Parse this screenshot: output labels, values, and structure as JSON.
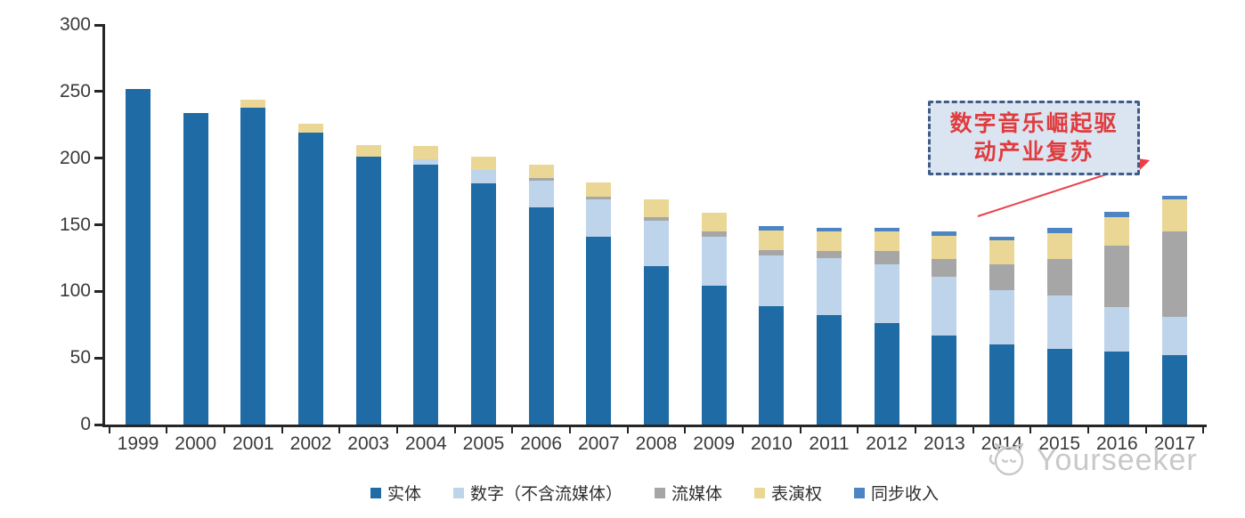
{
  "chart_data": {
    "type": "bar",
    "stacked": true,
    "title": "",
    "xlabel": "",
    "ylabel": "",
    "categories": [
      "1999",
      "2000",
      "2001",
      "2002",
      "2003",
      "2004",
      "2005",
      "2006",
      "2007",
      "2008",
      "2009",
      "2010",
      "2011",
      "2012",
      "2013",
      "2014",
      "2015",
      "2016",
      "2017"
    ],
    "series": [
      {
        "name": "实体",
        "key": "physical",
        "color": "#1F6BA5",
        "values": [
          252,
          234,
          238,
          219,
          201,
          195,
          181,
          163,
          141,
          119,
          104,
          89,
          82,
          76,
          67,
          60,
          57,
          55,
          52
        ]
      },
      {
        "name": "数字（不含流媒体）",
        "key": "digital-excl-streaming",
        "color": "#BDD4EB",
        "values": [
          0,
          0,
          0,
          0,
          0,
          4,
          10,
          20,
          28,
          34,
          37,
          38,
          43,
          44,
          44,
          41,
          40,
          33,
          29
        ]
      },
      {
        "name": "流媒体",
        "key": "streaming",
        "color": "#A6A6A6",
        "values": [
          0,
          0,
          0,
          0,
          0,
          0,
          0,
          2,
          2,
          3,
          4,
          4,
          5,
          10,
          13,
          19,
          27,
          46,
          64
        ]
      },
      {
        "name": "表演权",
        "key": "performance-rights",
        "color": "#EBD795",
        "values": [
          0,
          0,
          6,
          7,
          9,
          10,
          10,
          10,
          11,
          13,
          14,
          15,
          15,
          15,
          18,
          18,
          20,
          22,
          24
        ]
      },
      {
        "name": "同步收入",
        "key": "sync-revenue",
        "color": "#4D84C4",
        "values": [
          0,
          0,
          0,
          0,
          0,
          0,
          0,
          0,
          0,
          0,
          0,
          3,
          3,
          3,
          3,
          3,
          4,
          4,
          3
        ]
      }
    ],
    "totals": [
      252,
      234,
      244,
      226,
      210,
      209,
      201,
      195,
      182,
      169,
      159,
      149,
      148,
      148,
      145,
      141,
      148,
      160,
      172
    ],
    "ylim": [
      0,
      300
    ],
    "yticks": [
      0,
      50,
      100,
      150,
      200,
      250,
      300
    ],
    "grid": false,
    "legend_position": "bottom"
  },
  "annotation": {
    "line1": "数字音乐崛起驱",
    "line2": "动产业复苏",
    "text_color": "#E03C3E",
    "border_color": "#3E5C85",
    "fill_color": "#DBE5F2"
  },
  "arrow": {
    "color": "#EA4049",
    "icon": "trend-arrow-icon"
  },
  "watermark": {
    "text": "Yourseeker",
    "logo_icon": "cat-face-logo-icon",
    "color": "#C8C8C8"
  },
  "axis": {
    "line_color": "#262626",
    "label_color": "#3A3A3A"
  }
}
